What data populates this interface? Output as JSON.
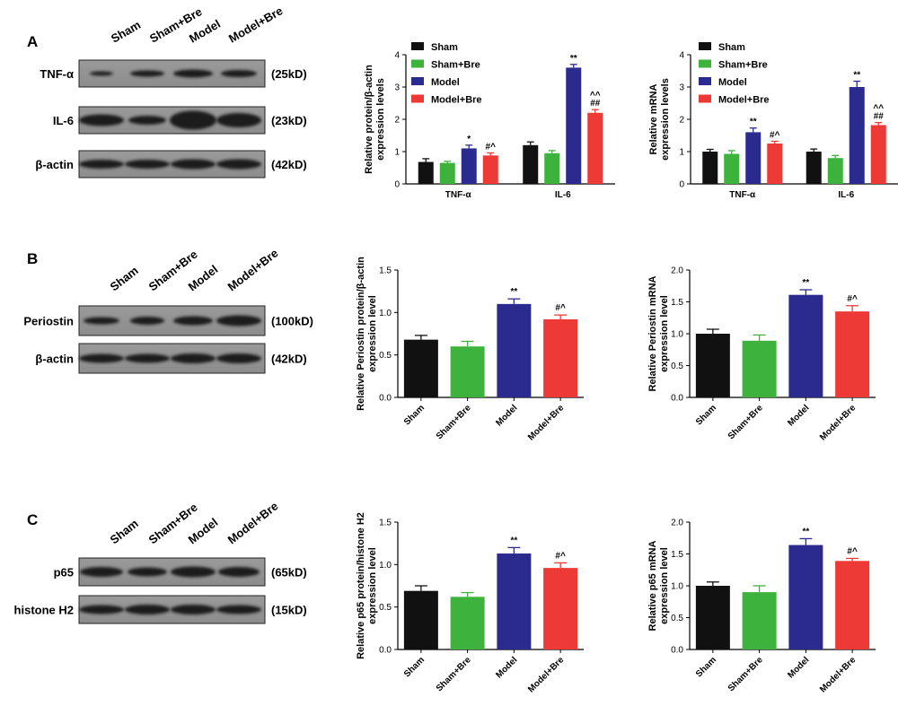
{
  "colors": {
    "Sham": "#111111",
    "Sham+Bre": "#3db33d",
    "Model": "#2b2b8f",
    "Model+Bre": "#ee3a36"
  },
  "groups": [
    "Sham",
    "Sham+Bre",
    "Model",
    "Model+Bre"
  ],
  "blots": [
    {
      "panel": "A",
      "rows": [
        {
          "label": "TNF-α",
          "size": "(25kD)"
        },
        {
          "label": "IL-6",
          "size": "(23kD)"
        },
        {
          "label": "β-actin",
          "size": "(42kD)"
        }
      ]
    },
    {
      "panel": "B",
      "rows": [
        {
          "label": "Periostin",
          "size": "(100kD)"
        },
        {
          "label": "β-actin",
          "size": "(42kD)"
        }
      ]
    },
    {
      "panel": "C",
      "rows": [
        {
          "label": "p65",
          "size": "(65kD)"
        },
        {
          "label": "histone H2",
          "size": "(15kD)"
        }
      ]
    }
  ],
  "chart_data": [
    {
      "id": "A1",
      "type": "bar",
      "categories": [
        "TNF-α",
        "IL-6"
      ],
      "ylabel": "Relative protein/β-actin expression levels",
      "ylim": [
        0,
        4
      ],
      "yticks": [
        0,
        1,
        2,
        3,
        4
      ],
      "legend": "top-left",
      "series": [
        {
          "name": "Sham",
          "values": [
            0.68,
            1.2
          ],
          "errors": [
            0.1,
            0.1
          ],
          "marks": [
            "",
            ""
          ]
        },
        {
          "name": "Sham+Bre",
          "values": [
            0.65,
            0.95
          ],
          "errors": [
            0.05,
            0.08
          ],
          "marks": [
            "",
            ""
          ]
        },
        {
          "name": "Model",
          "values": [
            1.1,
            3.6
          ],
          "errors": [
            0.1,
            0.1
          ],
          "marks": [
            "*",
            "**"
          ]
        },
        {
          "name": "Model+Bre",
          "values": [
            0.88,
            2.2
          ],
          "errors": [
            0.08,
            0.1
          ],
          "marks": [
            "#^",
            "^^\n##"
          ]
        }
      ]
    },
    {
      "id": "A2",
      "type": "bar",
      "categories": [
        "TNF-α",
        "IL-6"
      ],
      "ylabel": "Relative mRNA expression levels",
      "ylim": [
        0,
        4
      ],
      "yticks": [
        0,
        1,
        2,
        3,
        4
      ],
      "legend": "top-left",
      "series": [
        {
          "name": "Sham",
          "values": [
            1.0,
            1.0
          ],
          "errors": [
            0.07,
            0.08
          ],
          "marks": [
            "",
            ""
          ]
        },
        {
          "name": "Sham+Bre",
          "values": [
            0.93,
            0.8
          ],
          "errors": [
            0.1,
            0.08
          ],
          "marks": [
            "",
            ""
          ]
        },
        {
          "name": "Model",
          "values": [
            1.6,
            3.0
          ],
          "errors": [
            0.13,
            0.18
          ],
          "marks": [
            "**",
            "**"
          ]
        },
        {
          "name": "Model+Bre",
          "values": [
            1.25,
            1.82
          ],
          "errors": [
            0.07,
            0.08
          ],
          "marks": [
            "#^",
            "^^\n##"
          ]
        }
      ]
    },
    {
      "id": "B1",
      "type": "bar",
      "categories": [
        "Sham",
        "Sham+Bre",
        "Model",
        "Model+Bre"
      ],
      "ylabel": "Relative Periostin protein/β-actin expression level",
      "ylim": [
        0,
        1.5
      ],
      "yticks": [
        0,
        0.5,
        1,
        1.5
      ],
      "yticklabels": [
        "0.0",
        "0.5",
        "1.0",
        "1.5"
      ],
      "values": [
        0.68,
        0.6,
        1.1,
        0.92
      ],
      "errors": [
        0.05,
        0.06,
        0.06,
        0.05
      ],
      "marks": [
        "",
        "",
        "**",
        "#^"
      ]
    },
    {
      "id": "B2",
      "type": "bar",
      "categories": [
        "Sham",
        "Sham+Bre",
        "Model",
        "Model+Bre"
      ],
      "ylabel": "Relative Periostin mRNA expression level",
      "ylim": [
        0,
        2
      ],
      "yticks": [
        0,
        0.5,
        1,
        1.5,
        2
      ],
      "yticklabels": [
        "0.0",
        "0.5",
        "1.0",
        "1.5",
        "2.0"
      ],
      "values": [
        1.0,
        0.89,
        1.61,
        1.35
      ],
      "errors": [
        0.07,
        0.09,
        0.08,
        0.09
      ],
      "marks": [
        "",
        "",
        "**",
        "#^"
      ]
    },
    {
      "id": "C1",
      "type": "bar",
      "categories": [
        "Sham",
        "Sham+Bre",
        "Model",
        "Model+Bre"
      ],
      "ylabel": "Relative p65 protein/histone H2 expression level",
      "ylim": [
        0,
        1.5
      ],
      "yticks": [
        0,
        0.5,
        1,
        1.5
      ],
      "yticklabels": [
        "0.0",
        "0.5",
        "1.0",
        "1.5"
      ],
      "values": [
        0.69,
        0.62,
        1.13,
        0.96
      ],
      "errors": [
        0.06,
        0.05,
        0.07,
        0.06
      ],
      "marks": [
        "",
        "",
        "**",
        "#^"
      ]
    },
    {
      "id": "C2",
      "type": "bar",
      "categories": [
        "Sham",
        "Sham+Bre",
        "Model",
        "Model+Bre"
      ],
      "ylabel": "Relative p65 mRNA expression level",
      "ylim": [
        0,
        2
      ],
      "yticks": [
        0,
        0.5,
        1,
        1.5,
        2
      ],
      "yticklabels": [
        "0.0",
        "0.5",
        "1.0",
        "1.5",
        "2.0"
      ],
      "values": [
        1.0,
        0.9,
        1.64,
        1.39
      ],
      "errors": [
        0.06,
        0.1,
        0.1,
        0.04
      ],
      "marks": [
        "",
        "",
        "**",
        "#^"
      ]
    }
  ]
}
